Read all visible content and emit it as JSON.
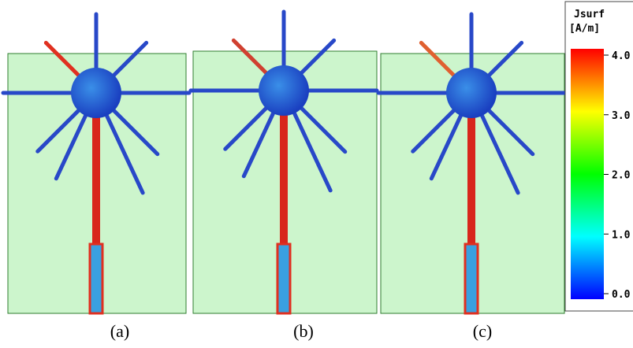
{
  "panels": [
    {
      "label": "(a)"
    },
    {
      "label": "(b)"
    },
    {
      "label": "(c)"
    }
  ],
  "colorbar": {
    "title": "Jsurf",
    "unit": "[A/m]",
    "range": [
      0,
      4
    ],
    "ticks": [
      {
        "value": 4,
        "label": "4.0"
      },
      {
        "value": 3,
        "label": "3.0"
      },
      {
        "value": 2,
        "label": "2.0"
      },
      {
        "value": 1,
        "label": "1.0"
      },
      {
        "value": 0,
        "label": "0.0"
      }
    ]
  }
}
